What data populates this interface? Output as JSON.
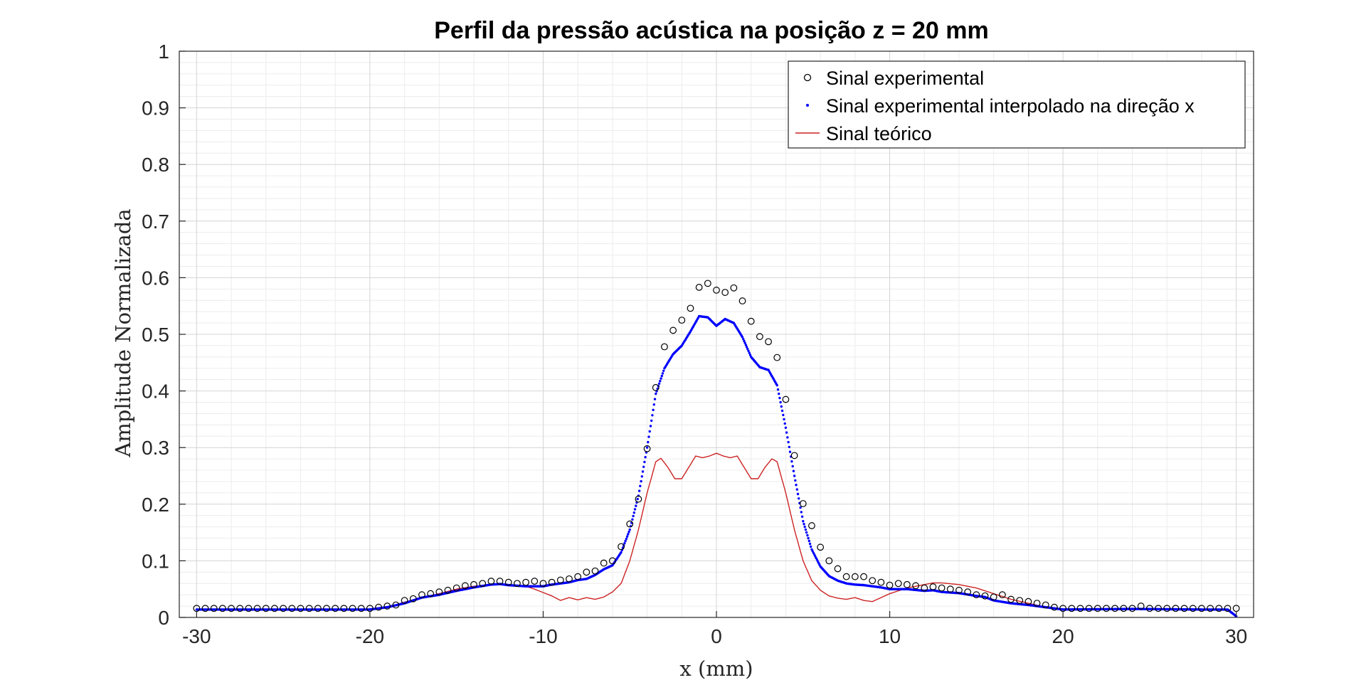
{
  "chart_data": {
    "type": "line",
    "title": "Perfil da pressão acústica na posição z = 20 mm",
    "xlabel": "x (mm)",
    "ylabel": "Amplitude Normalizada",
    "xlim": [
      -31,
      31
    ],
    "ylim": [
      0,
      1
    ],
    "xticks": [
      "-30",
      "-20",
      "-10",
      "0",
      "10",
      "20",
      "30"
    ],
    "yticks": [
      "0",
      "0.1",
      "0.2",
      "0.3",
      "0.4",
      "0.5",
      "0.6",
      "0.7",
      "0.8",
      "0.9",
      "1"
    ],
    "grid": true,
    "minor_grid": true,
    "legend_position": "top-right",
    "colors": {
      "experimental": "#000000",
      "interpolated": "#0000ff",
      "theoretical": "#cc2222"
    },
    "series": [
      {
        "name": "Sinal experimental",
        "style": "markers-circle",
        "points": [
          [
            -30,
            0.016
          ],
          [
            -29.5,
            0.016
          ],
          [
            -29,
            0.016
          ],
          [
            -28.5,
            0.016
          ],
          [
            -28,
            0.016
          ],
          [
            -27.5,
            0.016
          ],
          [
            -27,
            0.016
          ],
          [
            -26.5,
            0.016
          ],
          [
            -26,
            0.016
          ],
          [
            -25.5,
            0.016
          ],
          [
            -25,
            0.016
          ],
          [
            -24.5,
            0.016
          ],
          [
            -24,
            0.016
          ],
          [
            -23.5,
            0.016
          ],
          [
            -23,
            0.016
          ],
          [
            -22.5,
            0.016
          ],
          [
            -22,
            0.016
          ],
          [
            -21.5,
            0.016
          ],
          [
            -21,
            0.016
          ],
          [
            -20.5,
            0.016
          ],
          [
            -20,
            0.016
          ],
          [
            -19.5,
            0.018
          ],
          [
            -19,
            0.02
          ],
          [
            -18.5,
            0.022
          ],
          [
            -18,
            0.03
          ],
          [
            -17.5,
            0.033
          ],
          [
            -17,
            0.04
          ],
          [
            -16.5,
            0.042
          ],
          [
            -16,
            0.045
          ],
          [
            -15.5,
            0.048
          ],
          [
            -15,
            0.052
          ],
          [
            -14.5,
            0.056
          ],
          [
            -14,
            0.058
          ],
          [
            -13.5,
            0.06
          ],
          [
            -13,
            0.064
          ],
          [
            -12.5,
            0.064
          ],
          [
            -12,
            0.062
          ],
          [
            -11.5,
            0.06
          ],
          [
            -11,
            0.062
          ],
          [
            -10.5,
            0.064
          ],
          [
            -10,
            0.06
          ],
          [
            -9.5,
            0.062
          ],
          [
            -9,
            0.066
          ],
          [
            -8.5,
            0.068
          ],
          [
            -8,
            0.072
          ],
          [
            -7.5,
            0.08
          ],
          [
            -7,
            0.082
          ],
          [
            -6.5,
            0.096
          ],
          [
            -6,
            0.1
          ],
          [
            -5.5,
            0.125
          ],
          [
            -5,
            0.165
          ],
          [
            -4.5,
            0.209
          ],
          [
            -4,
            0.298
          ],
          [
            -3.5,
            0.406
          ],
          [
            -3,
            0.478
          ],
          [
            -2.5,
            0.507
          ],
          [
            -2,
            0.525
          ],
          [
            -1.5,
            0.546
          ],
          [
            -1,
            0.583
          ],
          [
            -0.5,
            0.59
          ],
          [
            0,
            0.578
          ],
          [
            0.5,
            0.574
          ],
          [
            1,
            0.582
          ],
          [
            1.5,
            0.559
          ],
          [
            2,
            0.523
          ],
          [
            2.5,
            0.496
          ],
          [
            3,
            0.487
          ],
          [
            3.5,
            0.459
          ],
          [
            4,
            0.385
          ],
          [
            4.5,
            0.286
          ],
          [
            5,
            0.201
          ],
          [
            5.5,
            0.162
          ],
          [
            6,
            0.124
          ],
          [
            6.5,
            0.1
          ],
          [
            7,
            0.086
          ],
          [
            7.5,
            0.072
          ],
          [
            8,
            0.072
          ],
          [
            8.5,
            0.072
          ],
          [
            9,
            0.065
          ],
          [
            9.5,
            0.062
          ],
          [
            10,
            0.057
          ],
          [
            10.5,
            0.06
          ],
          [
            11,
            0.058
          ],
          [
            11.5,
            0.056
          ],
          [
            12,
            0.052
          ],
          [
            12.5,
            0.054
          ],
          [
            13,
            0.052
          ],
          [
            13.5,
            0.05
          ],
          [
            14,
            0.048
          ],
          [
            14.5,
            0.045
          ],
          [
            15,
            0.04
          ],
          [
            15.5,
            0.038
          ],
          [
            16,
            0.036
          ],
          [
            16.5,
            0.04
          ],
          [
            17,
            0.032
          ],
          [
            17.5,
            0.03
          ],
          [
            18,
            0.028
          ],
          [
            18.5,
            0.025
          ],
          [
            19,
            0.022
          ],
          [
            19.5,
            0.018
          ],
          [
            20,
            0.016
          ],
          [
            20.5,
            0.016
          ],
          [
            21,
            0.016
          ],
          [
            21.5,
            0.016
          ],
          [
            22,
            0.016
          ],
          [
            22.5,
            0.016
          ],
          [
            23,
            0.016
          ],
          [
            23.5,
            0.016
          ],
          [
            24,
            0.016
          ],
          [
            24.5,
            0.02
          ],
          [
            25,
            0.016
          ],
          [
            25.5,
            0.016
          ],
          [
            26,
            0.016
          ],
          [
            26.5,
            0.016
          ],
          [
            27,
            0.016
          ],
          [
            27.5,
            0.016
          ],
          [
            28,
            0.016
          ],
          [
            28.5,
            0.016
          ],
          [
            29,
            0.016
          ],
          [
            29.5,
            0.016
          ],
          [
            30,
            0.016
          ]
        ]
      },
      {
        "name": "Sinal experimental interpolado na direção x",
        "style": "dots",
        "points": [
          [
            -30,
            0.014
          ],
          [
            -26,
            0.014
          ],
          [
            -22,
            0.014
          ],
          [
            -20,
            0.014
          ],
          [
            -19,
            0.018
          ],
          [
            -18,
            0.025
          ],
          [
            -17,
            0.035
          ],
          [
            -16,
            0.04
          ],
          [
            -15,
            0.047
          ],
          [
            -14,
            0.053
          ],
          [
            -13,
            0.058
          ],
          [
            -12.5,
            0.059
          ],
          [
            -12,
            0.057
          ],
          [
            -11,
            0.055
          ],
          [
            -10,
            0.055
          ],
          [
            -9.5,
            0.058
          ],
          [
            -9,
            0.06
          ],
          [
            -8.5,
            0.062
          ],
          [
            -8,
            0.066
          ],
          [
            -7.5,
            0.068
          ],
          [
            -7,
            0.075
          ],
          [
            -6.5,
            0.085
          ],
          [
            -6,
            0.092
          ],
          [
            -5.5,
            0.115
          ],
          [
            -5,
            0.155
          ],
          [
            -4.5,
            0.215
          ],
          [
            -4,
            0.3
          ],
          [
            -3.5,
            0.395
          ],
          [
            -3,
            0.44
          ],
          [
            -2.5,
            0.465
          ],
          [
            -2,
            0.48
          ],
          [
            -1.5,
            0.505
          ],
          [
            -1,
            0.532
          ],
          [
            -0.5,
            0.53
          ],
          [
            0,
            0.515
          ],
          [
            0.5,
            0.527
          ],
          [
            1,
            0.52
          ],
          [
            1.5,
            0.495
          ],
          [
            2,
            0.46
          ],
          [
            2.5,
            0.442
          ],
          [
            3,
            0.437
          ],
          [
            3.5,
            0.41
          ],
          [
            4,
            0.335
          ],
          [
            4.5,
            0.25
          ],
          [
            5,
            0.17
          ],
          [
            5.5,
            0.12
          ],
          [
            6,
            0.09
          ],
          [
            6.5,
            0.073
          ],
          [
            7,
            0.065
          ],
          [
            7.5,
            0.06
          ],
          [
            8,
            0.058
          ],
          [
            8.5,
            0.057
          ],
          [
            9,
            0.055
          ],
          [
            9.5,
            0.053
          ],
          [
            10,
            0.05
          ],
          [
            11,
            0.05
          ],
          [
            12,
            0.047
          ],
          [
            12.5,
            0.048
          ],
          [
            13,
            0.045
          ],
          [
            14,
            0.043
          ],
          [
            15,
            0.038
          ],
          [
            15.5,
            0.036
          ],
          [
            16,
            0.03
          ],
          [
            17,
            0.025
          ],
          [
            18,
            0.022
          ],
          [
            19,
            0.018
          ],
          [
            20,
            0.014
          ],
          [
            24,
            0.015
          ],
          [
            28,
            0.014
          ],
          [
            29.5,
            0.014
          ],
          [
            30,
            0.002
          ]
        ]
      },
      {
        "name": "Sinal teórico",
        "style": "line",
        "points": [
          [
            -30,
            0.014
          ],
          [
            -25,
            0.014
          ],
          [
            -21,
            0.014
          ],
          [
            -20,
            0.015
          ],
          [
            -19,
            0.018
          ],
          [
            -18,
            0.027
          ],
          [
            -17,
            0.035
          ],
          [
            -16,
            0.042
          ],
          [
            -15,
            0.05
          ],
          [
            -14,
            0.055
          ],
          [
            -13,
            0.058
          ],
          [
            -12.5,
            0.059
          ],
          [
            -12,
            0.058
          ],
          [
            -11,
            0.055
          ],
          [
            -10.5,
            0.05
          ],
          [
            -10,
            0.044
          ],
          [
            -9.5,
            0.038
          ],
          [
            -9,
            0.03
          ],
          [
            -8.5,
            0.035
          ],
          [
            -8,
            0.031
          ],
          [
            -7.5,
            0.035
          ],
          [
            -7,
            0.032
          ],
          [
            -6.5,
            0.036
          ],
          [
            -6,
            0.045
          ],
          [
            -5.5,
            0.06
          ],
          [
            -5,
            0.1
          ],
          [
            -4.5,
            0.155
          ],
          [
            -4,
            0.22
          ],
          [
            -3.5,
            0.275
          ],
          [
            -3.2,
            0.281
          ],
          [
            -2.8,
            0.265
          ],
          [
            -2.4,
            0.245
          ],
          [
            -2,
            0.245
          ],
          [
            -1.6,
            0.265
          ],
          [
            -1.2,
            0.285
          ],
          [
            -0.8,
            0.282
          ],
          [
            -0.4,
            0.285
          ],
          [
            0,
            0.29
          ],
          [
            0.4,
            0.285
          ],
          [
            0.8,
            0.282
          ],
          [
            1.2,
            0.285
          ],
          [
            1.6,
            0.265
          ],
          [
            2,
            0.245
          ],
          [
            2.4,
            0.245
          ],
          [
            2.8,
            0.265
          ],
          [
            3.2,
            0.28
          ],
          [
            3.5,
            0.275
          ],
          [
            4,
            0.22
          ],
          [
            4.5,
            0.155
          ],
          [
            5,
            0.1
          ],
          [
            5.5,
            0.065
          ],
          [
            6,
            0.048
          ],
          [
            6.5,
            0.038
          ],
          [
            7,
            0.034
          ],
          [
            7.5,
            0.032
          ],
          [
            8,
            0.035
          ],
          [
            8.5,
            0.03
          ],
          [
            9,
            0.028
          ],
          [
            9.5,
            0.035
          ],
          [
            10,
            0.042
          ],
          [
            11,
            0.052
          ],
          [
            12,
            0.058
          ],
          [
            12.5,
            0.061
          ],
          [
            13,
            0.061
          ],
          [
            14,
            0.058
          ],
          [
            15,
            0.052
          ],
          [
            16,
            0.042
          ],
          [
            17,
            0.032
          ],
          [
            18,
            0.025
          ],
          [
            19,
            0.018
          ],
          [
            20,
            0.015
          ],
          [
            22,
            0.014
          ],
          [
            25,
            0.014
          ],
          [
            28,
            0.014
          ],
          [
            29.5,
            0.014
          ],
          [
            30,
            0.003
          ]
        ]
      }
    ]
  }
}
